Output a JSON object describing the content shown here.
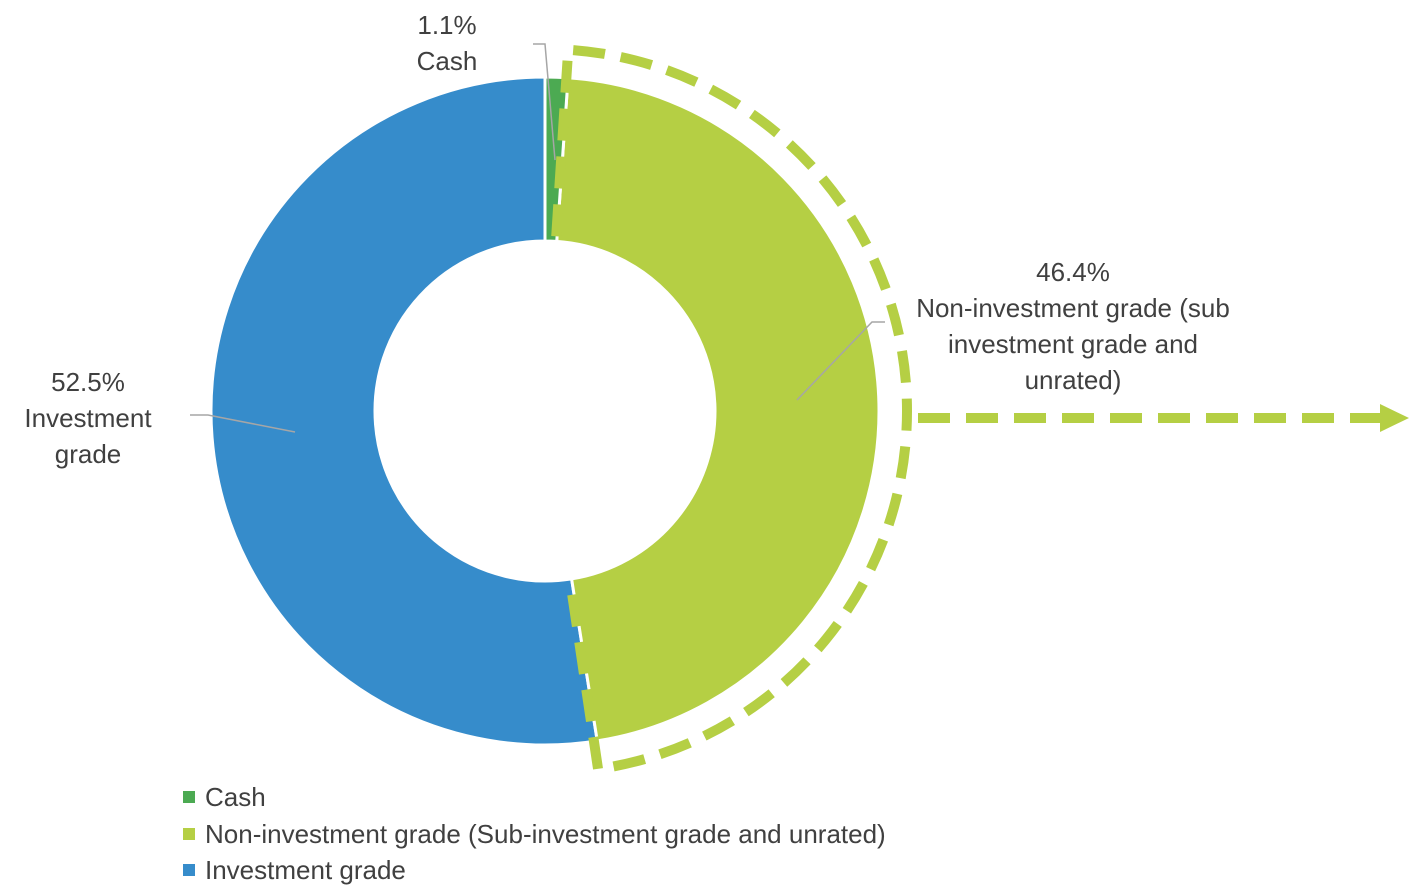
{
  "chart_data": {
    "type": "donut",
    "categories": [
      "Cash",
      "Non-investment grade (Sub-investment grade and unrated)",
      "Investment grade"
    ],
    "values": [
      1.1,
      46.4,
      52.5
    ],
    "value_labels": [
      "1.1%",
      "46.4%",
      "52.5%"
    ],
    "label_texts": [
      "Cash",
      "Non-investment grade (sub investment grade and unrated)",
      "Investment grade"
    ],
    "colors": [
      "#4caa52",
      "#b5cf44",
      "#368ccb"
    ],
    "legend": "bottom-left"
  }
}
